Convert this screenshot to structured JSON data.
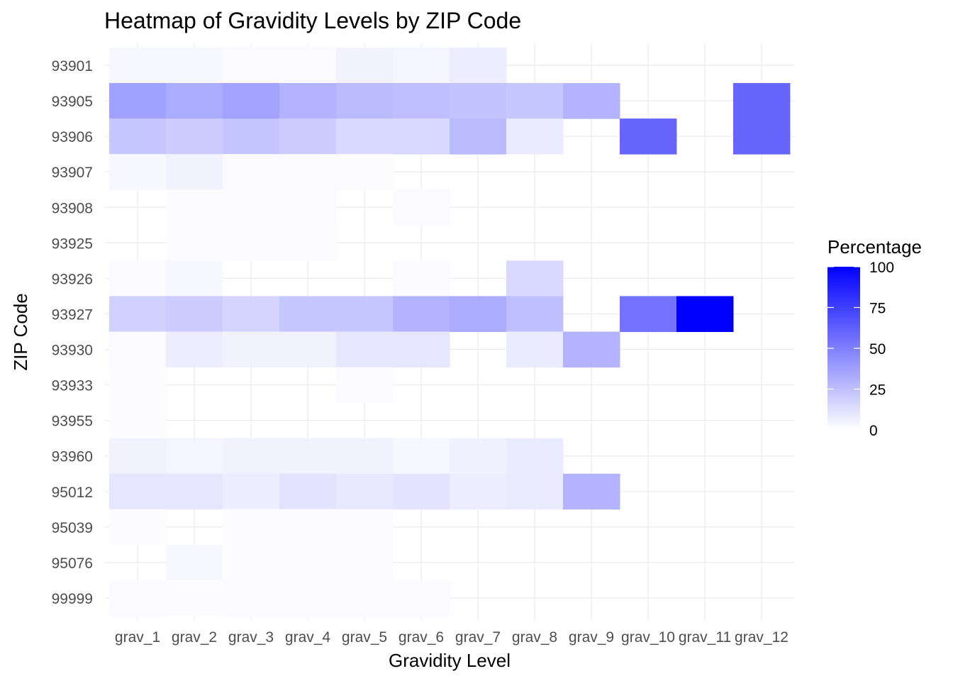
{
  "chart_data": {
    "type": "heatmap",
    "title": "Heatmap of Gravidity Levels by ZIP Code",
    "xlabel": "Gravidity Level",
    "ylabel": "ZIP Code",
    "x_categories": [
      "grav_1",
      "grav_2",
      "grav_3",
      "grav_4",
      "grav_5",
      "grav_6",
      "grav_7",
      "grav_8",
      "grav_9",
      "grav_10",
      "grav_11",
      "grav_12"
    ],
    "y_categories": [
      "93901",
      "93905",
      "93906",
      "93907",
      "93908",
      "93925",
      "93926",
      "93927",
      "93930",
      "93933",
      "93955",
      "93960",
      "95012",
      "95039",
      "95076",
      "99999"
    ],
    "values": [
      [
        3,
        3,
        2,
        2,
        5,
        4,
        7,
        null,
        null,
        null,
        null,
        null
      ],
      [
        37,
        33,
        36,
        30,
        27,
        25,
        24,
        22,
        30,
        null,
        null,
        60
      ],
      [
        22,
        20,
        23,
        20,
        15,
        15,
        27,
        8,
        null,
        60,
        null,
        60
      ],
      [
        3,
        5,
        2,
        2,
        1,
        null,
        null,
        null,
        null,
        null,
        null,
        null
      ],
      [
        null,
        1,
        1,
        2,
        null,
        2,
        null,
        null,
        null,
        null,
        null,
        null
      ],
      [
        null,
        1,
        1,
        1,
        null,
        null,
        null,
        null,
        null,
        null,
        null,
        null
      ],
      [
        2,
        3,
        null,
        null,
        null,
        2,
        null,
        15,
        null,
        null,
        null,
        null
      ],
      [
        18,
        20,
        17,
        22,
        22,
        30,
        33,
        25,
        null,
        55,
        100,
        null
      ],
      [
        2,
        7,
        5,
        5,
        10,
        10,
        null,
        8,
        30,
        null,
        null,
        null
      ],
      [
        1,
        null,
        null,
        null,
        2,
        null,
        null,
        null,
        null,
        null,
        null,
        null
      ],
      [
        1,
        null,
        null,
        null,
        null,
        null,
        null,
        null,
        null,
        null,
        null,
        null
      ],
      [
        5,
        4,
        5,
        5,
        5,
        3,
        6,
        8,
        null,
        null,
        null,
        null
      ],
      [
        10,
        10,
        7,
        11,
        9,
        11,
        7,
        8,
        30,
        null,
        null,
        null
      ],
      [
        1,
        null,
        1,
        1,
        2,
        null,
        null,
        null,
        null,
        null,
        null,
        null
      ],
      [
        null,
        3,
        1,
        1,
        2,
        null,
        null,
        null,
        null,
        null,
        null,
        null
      ],
      [
        2,
        1,
        2,
        2,
        2,
        2,
        null,
        null,
        null,
        null,
        null,
        null
      ]
    ],
    "legend": {
      "title": "Percentage",
      "range": [
        0,
        100
      ],
      "ticks": [
        "0",
        "25",
        "50",
        "75",
        "100"
      ],
      "tick_values": [
        0,
        25,
        50,
        75,
        100
      ],
      "position": "right"
    },
    "color_low": "#ffffff",
    "color_high": "#0000ff",
    "grid": true
  }
}
